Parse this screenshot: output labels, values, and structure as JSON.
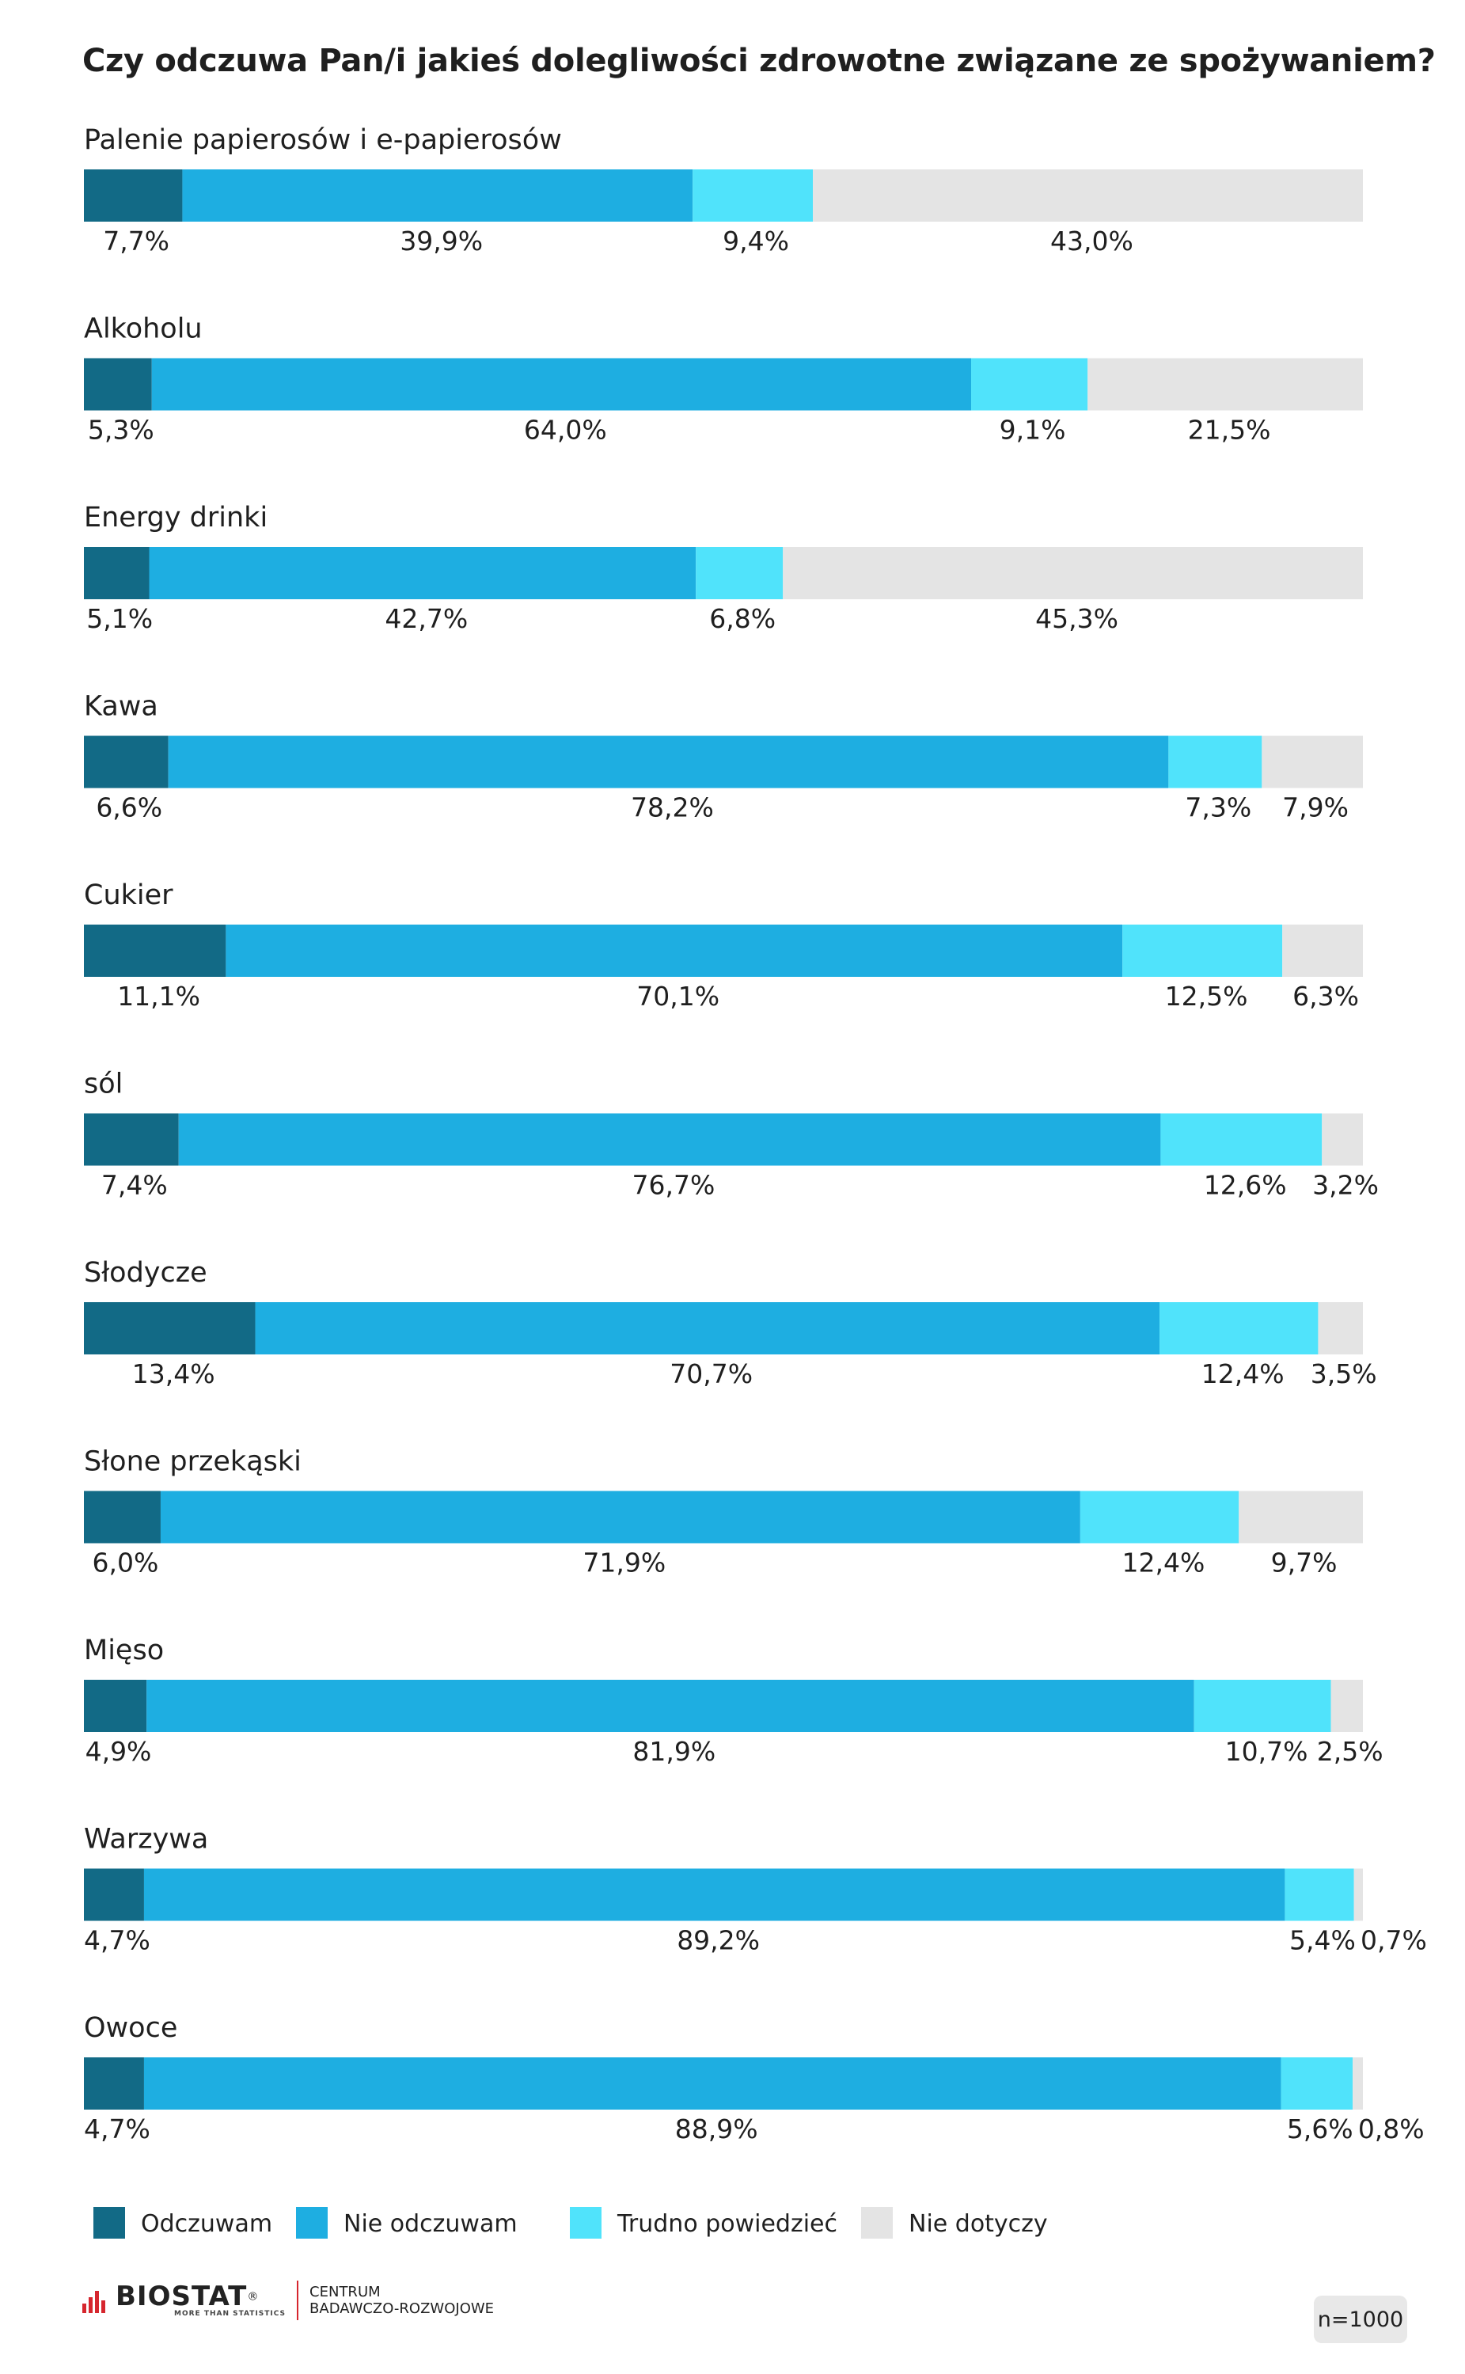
{
  "chart_data": {
    "type": "bar",
    "orientation": "horizontal",
    "stacked": true,
    "percent_stacked": true,
    "title": "Czy odczuwa Pan/i jakieś dolegliwości zdrowotne związane ze spożywaniem?",
    "categories": [
      "Palenie papierosów i e-papierosów",
      "Alkoholu",
      "Energy drinki",
      "Kawa",
      "Cukier",
      "sól",
      "Słodycze",
      "Słone przekąski",
      "Mięso",
      "Warzywa",
      "Owoce"
    ],
    "series": [
      {
        "name": "Odczuwam",
        "color": "#126a86",
        "values": [
          7.7,
          5.3,
          5.1,
          6.6,
          11.1,
          7.4,
          13.4,
          6.0,
          4.9,
          4.7,
          4.7
        ]
      },
      {
        "name": "Nie odczuwam",
        "color": "#1eaee1",
        "values": [
          39.9,
          64.0,
          42.7,
          78.2,
          70.1,
          76.7,
          70.7,
          71.9,
          81.9,
          89.2,
          88.9
        ]
      },
      {
        "name": "Trudno powiedzieć",
        "color": "#50e3fb",
        "values": [
          9.4,
          9.1,
          6.8,
          7.3,
          12.5,
          12.6,
          12.4,
          12.4,
          10.7,
          5.4,
          5.6
        ]
      },
      {
        "name": "Nie dotyczy",
        "color": "#e4e4e4",
        "values": [
          43.0,
          21.5,
          45.3,
          7.9,
          6.3,
          3.2,
          3.5,
          9.7,
          2.5,
          0.7,
          0.8
        ]
      }
    ],
    "value_labels": [
      [
        "7,7%",
        "39,9%",
        "9,4%",
        "43,0%"
      ],
      [
        "5,3%",
        "64,0%",
        "9,1%",
        "21,5%"
      ],
      [
        "5,1%",
        "42,7%",
        "6,8%",
        "45,3%"
      ],
      [
        "6,6%",
        "78,2%",
        "7,3%",
        "7,9%"
      ],
      [
        "11,1%",
        "70,1%",
        "12,5%",
        "6,3%"
      ],
      [
        "7,4%",
        "76,7%",
        "12,6%",
        "3,2%"
      ],
      [
        "13,4%",
        "70,7%",
        "12,4%",
        "3,5%"
      ],
      [
        "6,0%",
        "71,9%",
        "12,4%",
        "9,7%"
      ],
      [
        "4,9%",
        "81,9%",
        "10,7%",
        "2,5%"
      ],
      [
        "4,7%",
        "89,2%",
        "5,4%",
        "0,7%"
      ],
      [
        "4,7%",
        "88,9%",
        "5,6%",
        "0,8%"
      ]
    ],
    "xlim": [
      0,
      100
    ],
    "grid": false,
    "legend_position": "bottom"
  },
  "footer": {
    "brand": "BIOSTAT",
    "registered": "®",
    "tagline": "MORE THAN STATISTICS",
    "subtitle_line1": "CENTRUM",
    "subtitle_line2": "BADAWCZO-ROZWOJOWE",
    "sample_size": "n=1000"
  }
}
